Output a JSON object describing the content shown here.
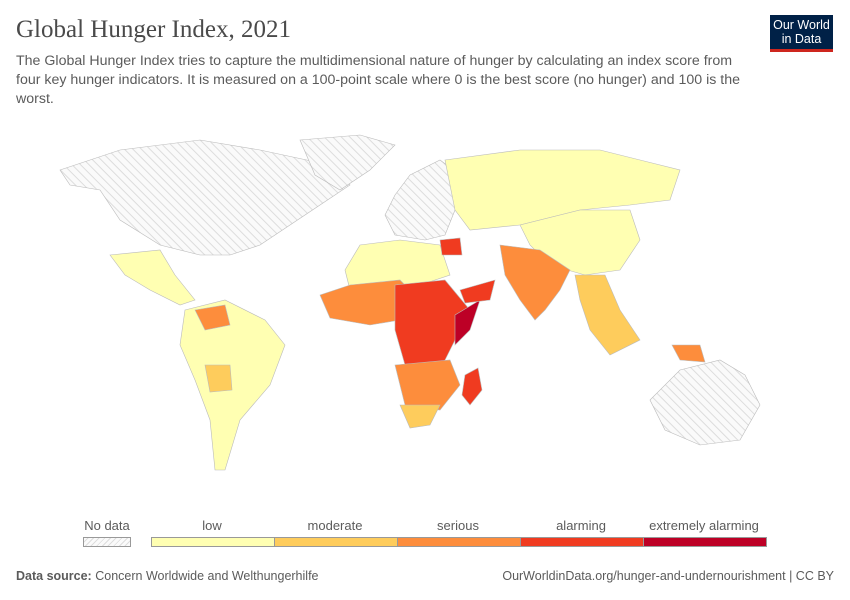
{
  "title": "Global Hunger Index, 2021",
  "subtitle": "The Global Hunger Index tries to capture the multidimensional nature of hunger by calculating an index score from four key hunger indicators. It is measured on a 100-point scale where 0 is the best score (no hunger) and 100 is the worst.",
  "logo": {
    "line1": "Our World",
    "line2": "in Data",
    "bg": "#002147",
    "accent": "#ce261e"
  },
  "legend": {
    "no_data": "No data",
    "bins": [
      {
        "label": "low",
        "color": "#ffffb2"
      },
      {
        "label": "moderate",
        "color": "#fecc5c"
      },
      {
        "label": "serious",
        "color": "#fd8d3c"
      },
      {
        "label": "alarming",
        "color": "#f03b20"
      },
      {
        "label": "extremely alarming",
        "color": "#bd0026"
      }
    ]
  },
  "regions": [
    {
      "name": "North America",
      "category": "no data"
    },
    {
      "name": "Greenland",
      "category": "no data"
    },
    {
      "name": "Europe",
      "category": "no data"
    },
    {
      "name": "Australia",
      "category": "no data"
    },
    {
      "name": "Mexico and Central America",
      "category": "low"
    },
    {
      "name": "South America",
      "category": "low"
    },
    {
      "name": "Russia and Central Asia",
      "category": "low"
    },
    {
      "name": "China",
      "category": "low"
    },
    {
      "name": "North Africa",
      "category": "low"
    },
    {
      "name": "West Africa",
      "category": "serious"
    },
    {
      "name": "Central Africa",
      "category": "alarming"
    },
    {
      "name": "Southern Africa",
      "category": "serious"
    },
    {
      "name": "South Africa",
      "category": "moderate"
    },
    {
      "name": "Madagascar",
      "category": "alarming"
    },
    {
      "name": "Somalia",
      "category": "extremely alarming"
    },
    {
      "name": "Yemen",
      "category": "alarming"
    },
    {
      "name": "Syria",
      "category": "alarming"
    },
    {
      "name": "India",
      "category": "serious"
    },
    {
      "name": "Southeast Asia",
      "category": "moderate"
    },
    {
      "name": "Papua New Guinea",
      "category": "serious"
    },
    {
      "name": "Venezuela",
      "category": "serious"
    },
    {
      "name": "Bolivia",
      "category": "moderate"
    }
  ],
  "footer": {
    "source_label": "Data source:",
    "source": "Concern Worldwide and Welthungerhilfe",
    "url": "OurWorldinData.org/hunger-and-undernourishment | CC BY"
  }
}
